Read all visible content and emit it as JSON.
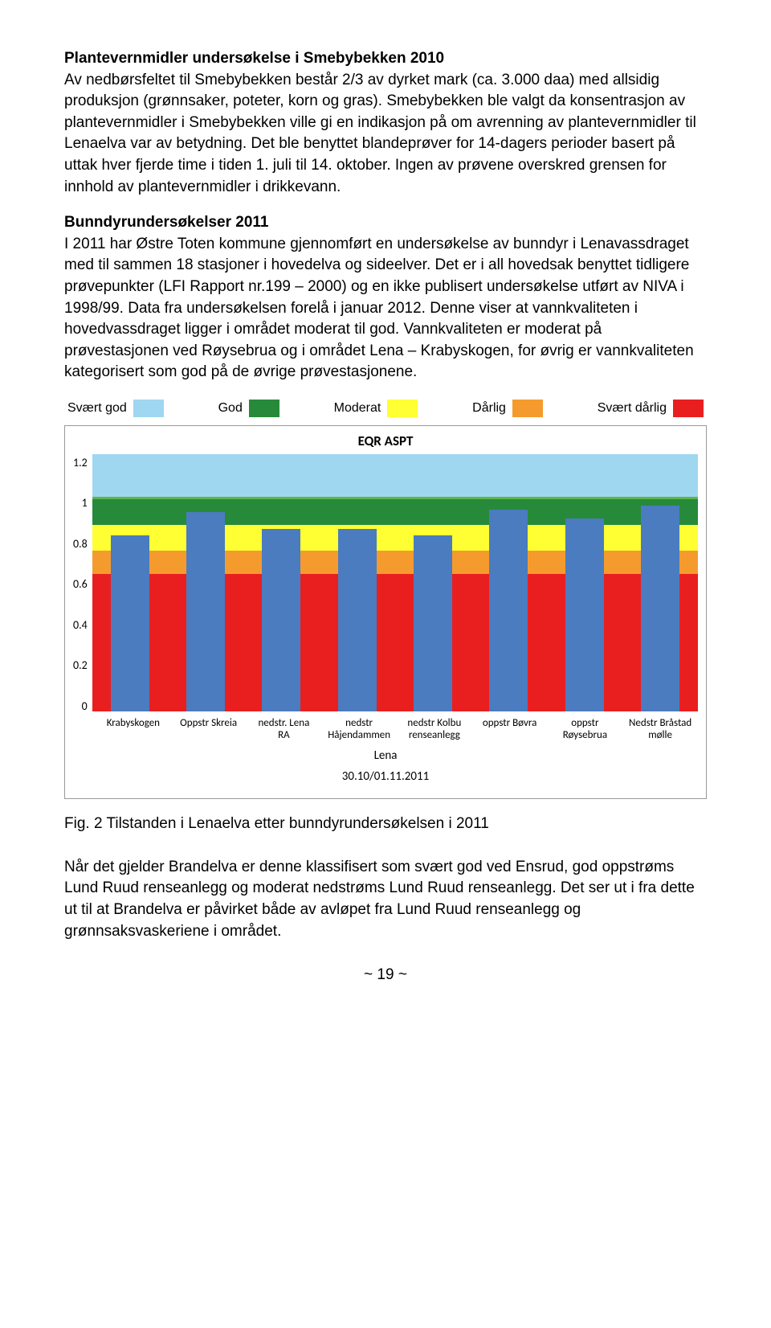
{
  "doc": {
    "section1_title": "Plantevernmidler undersøkelse i Smebybekken 2010",
    "para1": "Av nedbørsfeltet til Smebybekken består 2/3 av dyrket mark (ca. 3.000 daa) med allsidig produksjon (grønnsaker, poteter, korn og gras). Smebybekken ble valgt da konsentrasjon av plantevernmidler i Smebybekken ville gi en indikasjon på om avrenning av plantevernmidler til Lenaelva var av betydning. Det ble benyttet blandeprøver for 14-dagers perioder basert på uttak hver fjerde time i tiden 1. juli til 14. oktober. Ingen av prøvene overskred grensen for innhold av plantevernmidler i drikkevann.",
    "section2_title": "Bunndyrundersøkelser  2011",
    "para2": "I 2011 har Østre Toten kommune gjennomført en undersøkelse av bunndyr i Lenavassdraget med til sammen 18 stasjoner i hovedelva og sideelver. Det er i all hovedsak benyttet tidligere prøvepunkter (LFI Rapport nr.199 – 2000) og en ikke publisert undersøkelse utført av NIVA i 1998/99. Data fra undersøkelsen forelå i januar 2012. Denne viser at vannkvaliteten i hovedvassdraget ligger i området moderat til god. Vannkvaliteten er moderat på prøvestasjonen ved Røysebrua og i området Lena – Krabyskogen, for øvrig er vannkvaliteten kategorisert som god på de øvrige prøvestasjonene.",
    "fig_caption": "Fig. 2   Tilstanden i Lenaelva etter bunndyrundersøkelsen i 2011",
    "para3": "Når det gjelder Brandelva er denne klassifisert som svært god ved Ensrud, god oppstrøms Lund Ruud renseanlegg og moderat nedstrøms Lund Ruud renseanlegg. Det ser ut i fra dette ut til at Brandelva er påvirket både av avløpet fra Lund Ruud renseanlegg og grønnsaksvaskeriene i området.",
    "page_num": "~ 19 ~"
  },
  "legend": {
    "items": [
      {
        "label": "Svært god",
        "color": "#9fd7f0"
      },
      {
        "label": "God",
        "color": "#268a3a"
      },
      {
        "label": "Moderat",
        "color": "#ffff33"
      },
      {
        "label": "Dårlig",
        "color": "#f59b2e"
      },
      {
        "label": "Svært dårlig",
        "color": "#e91f1f"
      }
    ]
  },
  "chart": {
    "title": "EQR ASPT",
    "ylim": [
      0,
      1.2
    ],
    "ytick_step": 0.2,
    "yticks": [
      "1.2",
      "1",
      "0.8",
      "0.6",
      "0.4",
      "0.2",
      "0"
    ],
    "bands": [
      {
        "from": 1.0,
        "to": 1.2,
        "color": "#9fd7f0"
      },
      {
        "from": 0.99,
        "to": 1.0,
        "color": "#5fb54b"
      },
      {
        "from": 0.87,
        "to": 0.99,
        "color": "#268a3a"
      },
      {
        "from": 0.75,
        "to": 0.87,
        "color": "#ffff33"
      },
      {
        "from": 0.64,
        "to": 0.75,
        "color": "#f59b2e"
      },
      {
        "from": 0.0,
        "to": 0.64,
        "color": "#e91f1f"
      }
    ],
    "bar_color": "#4a7cbf",
    "categories": [
      {
        "line1": "Krabyskogen",
        "line2": ""
      },
      {
        "line1": "Oppstr Skreia",
        "line2": ""
      },
      {
        "line1": "nedstr. Lena",
        "line2": "RA"
      },
      {
        "line1": "nedstr",
        "line2": "Håjendammen"
      },
      {
        "line1": "nedstr Kolbu",
        "line2": "renseanlegg"
      },
      {
        "line1": "oppstr Bøvra",
        "line2": ""
      },
      {
        "line1": "oppstr",
        "line2": "Røysebrua"
      },
      {
        "line1": "Nedstr Bråstad",
        "line2": "mølle"
      }
    ],
    "values": [
      0.82,
      0.93,
      0.85,
      0.85,
      0.82,
      0.94,
      0.9,
      0.96
    ],
    "sub1": "Lena",
    "sub2": "30.10/01.11.2011"
  }
}
